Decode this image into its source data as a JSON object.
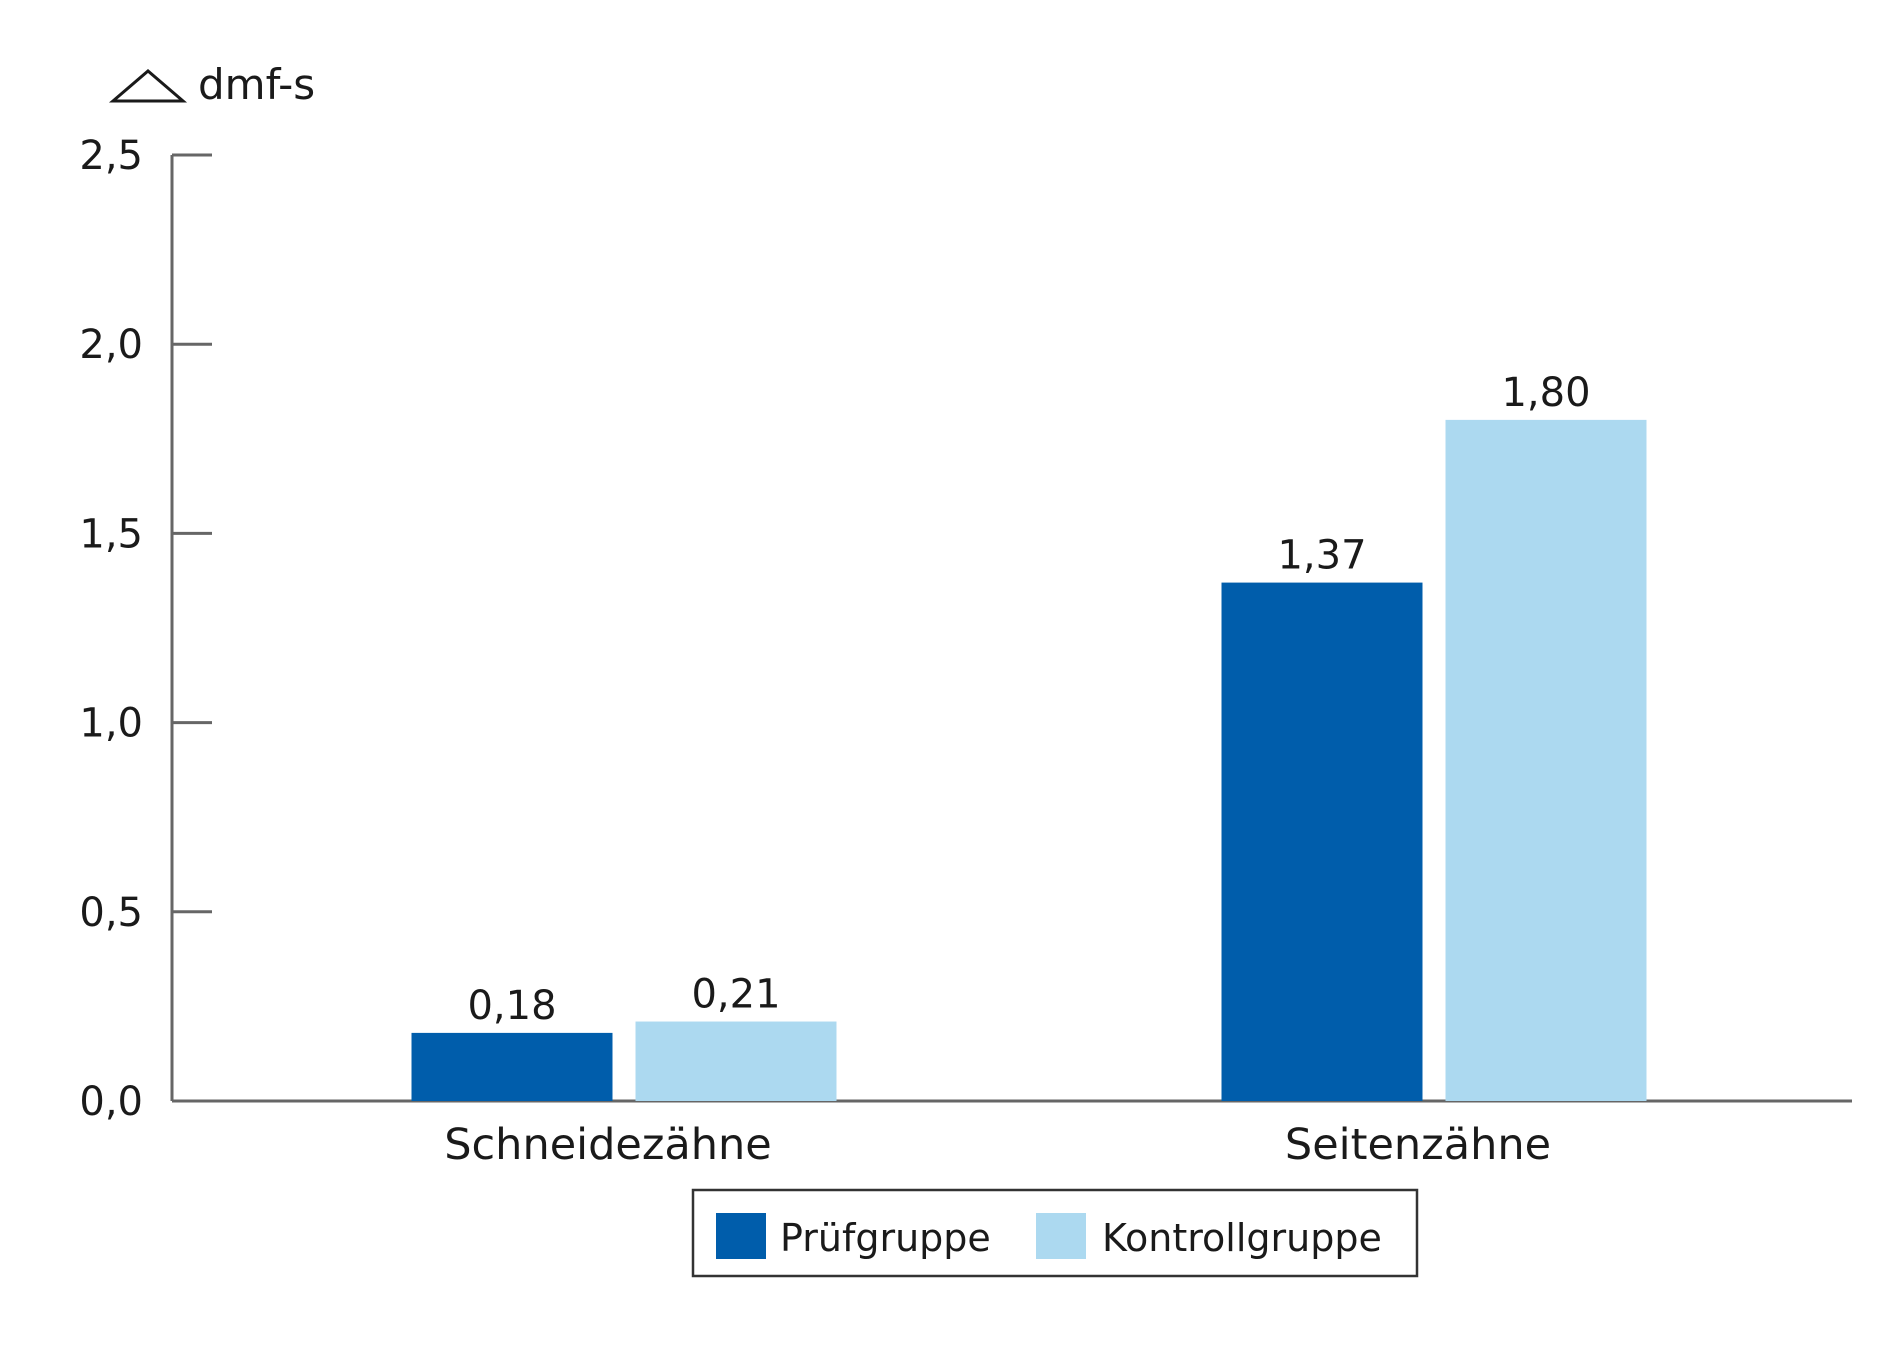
{
  "chart_data": {
    "type": "bar",
    "title": "",
    "ylabel": "dmf-s",
    "ylabel_symbol": "triangle-delta-icon",
    "xlabel": "",
    "categories": [
      "Schneidezähne",
      "Seitenzähne"
    ],
    "series": [
      {
        "name": "Prüfgruppe",
        "color": "#005dab",
        "values": [
          0.18,
          1.37
        ],
        "value_labels": [
          "0,18",
          "1,37"
        ]
      },
      {
        "name": "Kontrollgruppe",
        "color": "#acd9f0",
        "values": [
          0.21,
          1.8
        ],
        "value_labels": [
          "0,21",
          "1,80"
        ]
      }
    ],
    "ylim": [
      0,
      2.5
    ],
    "yticks": [
      0,
      0.5,
      1.0,
      1.5,
      2.0,
      2.5
    ],
    "ytick_labels": [
      "0,0",
      "0,5",
      "1,0",
      "1,5",
      "2,0",
      "2,5"
    ],
    "grid": false,
    "legend_position": "bottom-center",
    "axis_color": "#666666"
  }
}
